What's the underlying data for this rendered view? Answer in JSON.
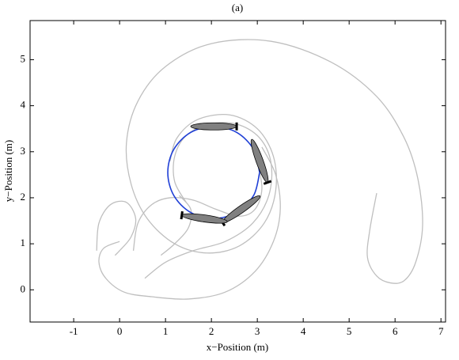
{
  "chart_data": {
    "type": "trajectory",
    "title": "(a)",
    "xlabel": "x−Position (m)",
    "ylabel": "y−Position (m)",
    "xlim": [
      -1.95,
      7.1
    ],
    "ylim": [
      -0.7,
      5.85
    ],
    "xticks": [
      -1,
      0,
      1,
      2,
      3,
      4,
      5,
      6,
      7
    ],
    "yticks": [
      0,
      1,
      2,
      3,
      4,
      5
    ],
    "series": [
      {
        "color": "#bfbfbf",
        "x": [
          5.6,
          5.45,
          5.4,
          5.6,
          5.9,
          6.2,
          6.45,
          6.6,
          6.5,
          6.2,
          5.6,
          4.6,
          3.3,
          2.0,
          1.0,
          0.4,
          0.15,
          0.25,
          0.6,
          1.2,
          1.9,
          2.6,
          3.15,
          3.4,
          3.35,
          3.0,
          2.4,
          1.7,
          1.25,
          1.1
        ],
        "y": [
          2.1,
          1.3,
          0.7,
          0.3,
          0.15,
          0.2,
          0.6,
          1.4,
          2.4,
          3.3,
          4.2,
          4.95,
          5.4,
          5.35,
          4.85,
          4.1,
          3.2,
          2.3,
          1.55,
          1.0,
          0.8,
          0.95,
          1.45,
          2.15,
          2.9,
          3.5,
          3.8,
          3.7,
          3.3,
          2.8
        ]
      },
      {
        "color": "#bfbfbf",
        "x": [
          0.55,
          1.0,
          1.6,
          2.3,
          2.9,
          3.25,
          3.3,
          3.05,
          2.55,
          1.95,
          1.45,
          1.2,
          1.2,
          1.45
        ],
        "y": [
          0.25,
          0.6,
          0.85,
          1.05,
          1.45,
          2.05,
          2.75,
          3.3,
          3.6,
          3.6,
          3.35,
          2.9,
          2.35,
          1.9
        ]
      },
      {
        "color": "#bfbfbf",
        "x": [
          -0.5,
          -0.45,
          -0.2,
          0.15,
          0.35,
          0.25,
          0.0,
          -0.1
        ],
        "y": [
          0.85,
          1.45,
          1.85,
          1.9,
          1.55,
          1.15,
          0.85,
          0.75
        ]
      },
      {
        "color": "#bfbfbf",
        "x": [
          0.0,
          -0.35,
          -0.45,
          -0.3,
          0.1,
          0.7,
          1.5,
          2.3,
          2.95,
          3.35,
          3.5,
          3.4,
          3.1
        ],
        "y": [
          1.05,
          0.9,
          0.6,
          0.25,
          -0.05,
          -0.15,
          -0.2,
          -0.05,
          0.4,
          1.05,
          1.75,
          2.5,
          3.1
        ]
      },
      {
        "color": "#bfbfbf",
        "x": [
          0.3,
          0.4,
          0.7,
          1.1,
          1.6,
          2.1,
          2.6,
          2.95,
          3.1,
          3.0
        ],
        "y": [
          0.85,
          1.45,
          1.85,
          2.0,
          1.95,
          1.75,
          1.6,
          1.75,
          2.2,
          2.8
        ]
      },
      {
        "color": "#bfbfbf",
        "x": [
          0.9,
          1.2,
          1.5,
          1.55,
          1.3
        ],
        "y": [
          0.75,
          1.0,
          1.35,
          1.75,
          2.05
        ]
      },
      {
        "color": "#1f3fd6",
        "x": [
          3.05,
          2.92,
          2.55,
          2.05,
          1.55,
          1.18,
          1.05,
          1.18,
          1.55,
          2.05,
          2.55,
          2.92,
          3.05
        ],
        "y": [
          2.55,
          3.05,
          3.42,
          3.55,
          3.42,
          3.05,
          2.55,
          2.05,
          1.68,
          1.55,
          1.68,
          2.05,
          2.55
        ]
      }
    ],
    "vessels": {
      "color": "#808080",
      "x": [
        2.05,
        3.05,
        2.65,
        1.85
      ],
      "y": [
        3.55,
        2.8,
        1.75,
        1.55
      ],
      "heading": [
        0,
        -70,
        -145,
        172
      ]
    }
  }
}
